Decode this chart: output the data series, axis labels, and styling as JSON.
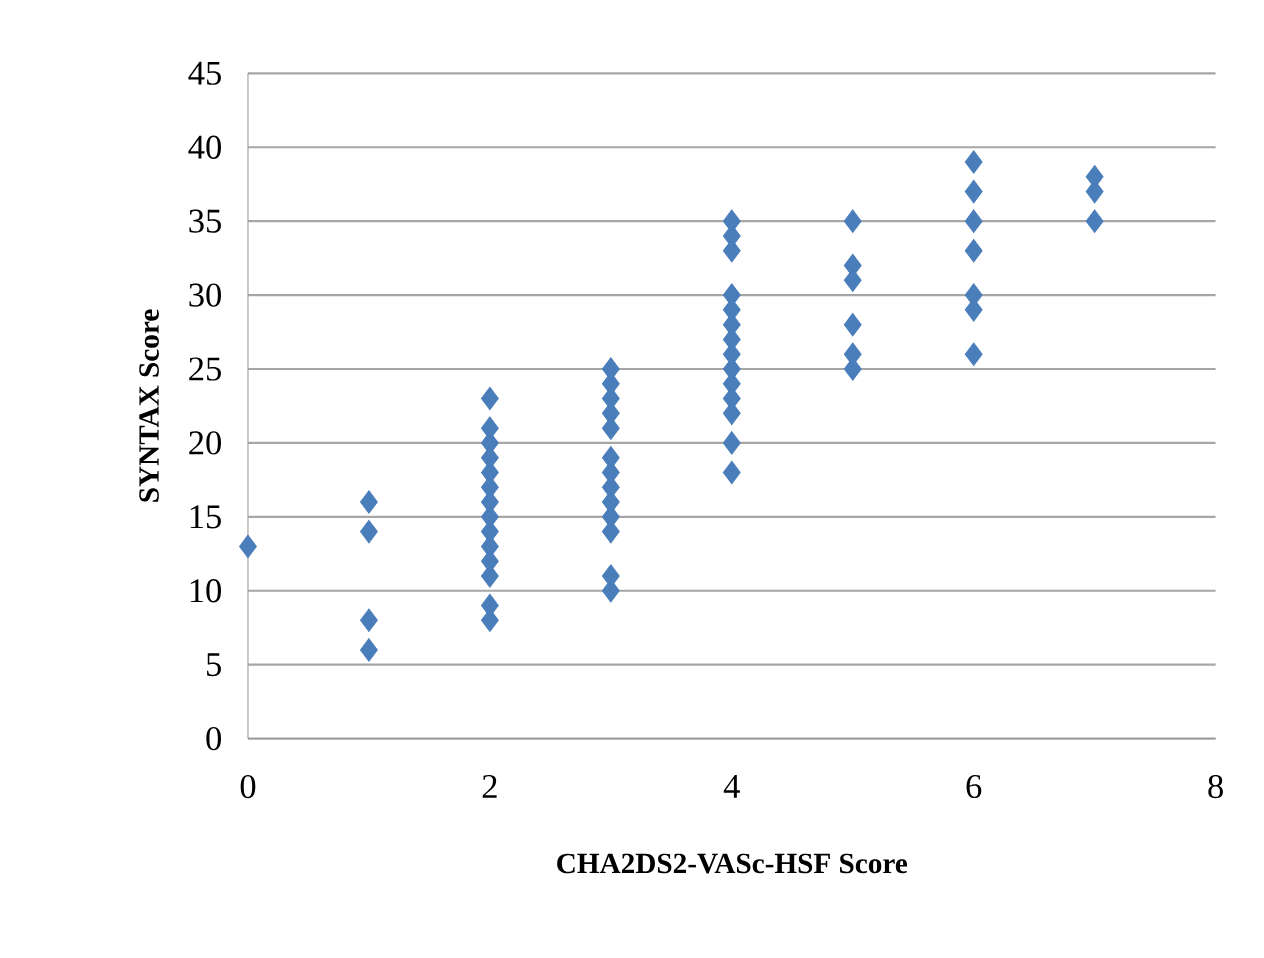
{
  "chart_data": {
    "type": "scatter",
    "xlabel": "CHA2DS2-VASc-HSF Score",
    "ylabel": "SYNTAX Score",
    "x": [
      0,
      1,
      1,
      1,
      1,
      2,
      2,
      2,
      2,
      2,
      2,
      2,
      2,
      2,
      2,
      2,
      2,
      2,
      2,
      3,
      3,
      3,
      3,
      3,
      3,
      3,
      3,
      3,
      3,
      3,
      3,
      3,
      4,
      4,
      4,
      4,
      4,
      4,
      4,
      4,
      4,
      4,
      4,
      4,
      4,
      4,
      5,
      5,
      5,
      5,
      5,
      5,
      6,
      6,
      6,
      6,
      6,
      6,
      6,
      7,
      7,
      7
    ],
    "values": [
      13,
      16,
      14,
      8,
      6,
      8,
      9,
      11,
      12,
      13,
      14,
      15,
      16,
      17,
      18,
      19,
      20,
      21,
      23,
      10,
      11,
      14,
      15,
      16,
      17,
      18,
      19,
      21,
      22,
      23,
      24,
      25,
      18,
      20,
      22,
      23,
      24,
      25,
      26,
      27,
      28,
      29,
      30,
      33,
      34,
      35,
      25,
      26,
      28,
      31,
      32,
      35,
      26,
      29,
      30,
      33,
      35,
      37,
      39,
      35,
      37,
      38
    ],
    "color": "#4a7ebb",
    "marker": "diamond",
    "xlim": [
      0,
      8
    ],
    "ylim": [
      0,
      45
    ],
    "xticks": [
      0,
      2,
      4,
      6,
      8
    ],
    "yticks": [
      0,
      5,
      10,
      15,
      20,
      25,
      30,
      35,
      40,
      45
    ],
    "grid": "y"
  }
}
